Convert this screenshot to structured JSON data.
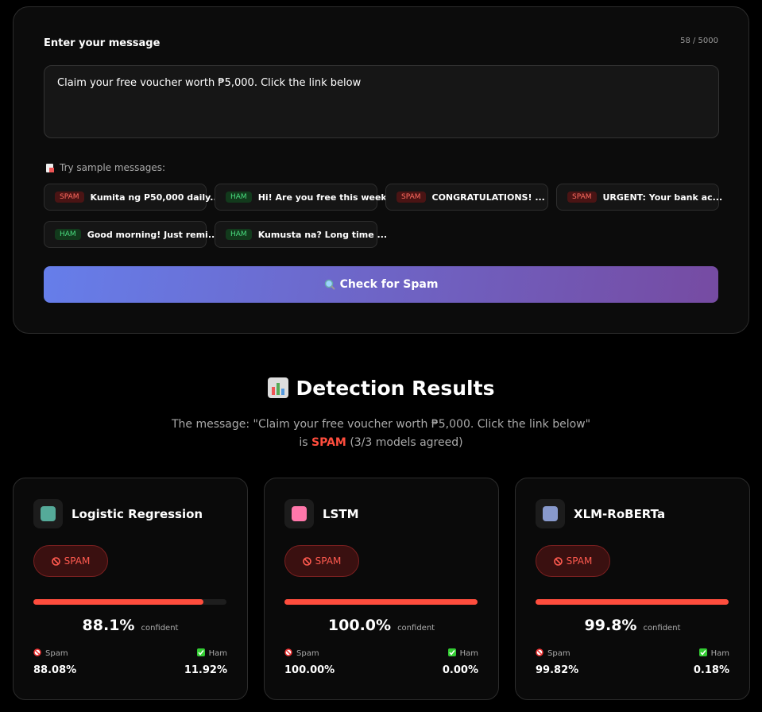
{
  "input": {
    "label": "Enter your message",
    "counter": "58 / 5000",
    "text": "Claim your free voucher worth ₱5,000. Click the link below"
  },
  "samples": {
    "heading": "Try sample messages:",
    "items": [
      {
        "tag": "SPAM",
        "text": "Kumita ng P50,000 daily..."
      },
      {
        "tag": "HAM",
        "text": "Hi! Are you free this week..."
      },
      {
        "tag": "SPAM",
        "text": "CONGRATULATIONS! ..."
      },
      {
        "tag": "SPAM",
        "text": "URGENT: Your bank ac..."
      },
      {
        "tag": "HAM",
        "text": "Good morning! Just remi..."
      },
      {
        "tag": "HAM",
        "text": "Kumusta na? Long time ..."
      }
    ]
  },
  "button": "Check for Spam",
  "results": {
    "title": "Detection Results",
    "message": "The message: \"Claim your free voucher worth ₱5,000. Click the link below\"",
    "verdict_prefix": "is",
    "verdict": "SPAM",
    "verdict_note": "(3/3 models agreed)",
    "models": [
      {
        "name": "Logistic Regression",
        "badge": "SPAM",
        "confidence": {
          "value": 88.1,
          "label": "88.1%"
        },
        "confident": "confident",
        "spam_label": "Spam",
        "spam": "88.08%",
        "ham_label": "Ham",
        "ham": "11.92%"
      },
      {
        "name": "LSTM",
        "badge": "SPAM",
        "confidence": {
          "value": 100.0,
          "label": "100.0%"
        },
        "confident": "confident",
        "spam_label": "Spam",
        "spam": "100.00%",
        "ham_label": "Ham",
        "ham": "0.00%"
      },
      {
        "name": "XLM-RoBERTa",
        "badge": "SPAM",
        "confidence": {
          "value": 99.8,
          "label": "99.8%"
        },
        "confident": "confident",
        "spam_label": "Spam",
        "spam": "99.82%",
        "ham_label": "Ham",
        "ham": "0.18%"
      }
    ]
  }
}
